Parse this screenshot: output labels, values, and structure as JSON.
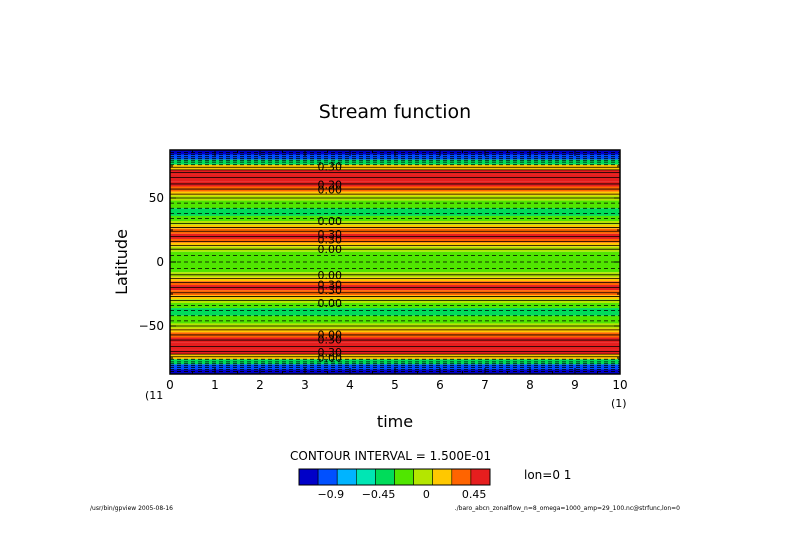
{
  "chart_data": {
    "type": "heatmap",
    "title": "Stream function",
    "xlabel": "time",
    "ylabel": "Latitude",
    "xlim": [
      0,
      10
    ],
    "ylim": [
      -87.5,
      87.5
    ],
    "x_ticks": [
      0,
      1,
      2,
      3,
      4,
      5,
      6,
      7,
      8,
      9,
      10
    ],
    "y_ticks": [
      50,
      0,
      -50
    ],
    "x_tick_labels": [
      "0",
      "1",
      "2",
      "3",
      "4",
      "5",
      "6",
      "7",
      "8",
      "9",
      "10"
    ],
    "y_tick_labels": [
      "50",
      "0",
      "−50"
    ],
    "x_left_unit": "(11",
    "x_right_unit": "(1)",
    "contour_interval_text": "CONTOUR INTERVAL = 1.500E-01",
    "lon_text": "lon=0 1",
    "colorbar": {
      "colors": [
        "#0000c8",
        "#0050ff",
        "#00b4ff",
        "#00e6b4",
        "#00dc5a",
        "#50e600",
        "#b4e600",
        "#ffc800",
        "#ff6400",
        "#e61e1e"
      ],
      "tick_values": [
        -0.9,
        -0.45,
        0,
        0.45
      ],
      "tick_labels": [
        "−0.9",
        "−0.45",
        "0",
        "0.45"
      ],
      "range": [
        -1.2,
        0.6
      ]
    },
    "bands": [
      {
        "lat": [
          84,
          87.5
        ],
        "value": -1.35
      },
      {
        "lat": [
          80,
          84
        ],
        "value": -0.95
      },
      {
        "lat": [
          76,
          80
        ],
        "value": -0.4
      },
      {
        "lat": [
          72,
          76
        ],
        "value": 0.2
      },
      {
        "lat": [
          68,
          72
        ],
        "value": 0.5
      },
      {
        "lat": [
          63,
          68
        ],
        "value": 0.55
      },
      {
        "lat": [
          59,
          63
        ],
        "value": 0.5
      },
      {
        "lat": [
          55,
          59
        ],
        "value": 0.4
      },
      {
        "lat": [
          52,
          55
        ],
        "value": 0.2
      },
      {
        "lat": [
          48,
          52
        ],
        "value": 0.02
      },
      {
        "lat": [
          42,
          48
        ],
        "value": -0.15
      },
      {
        "lat": [
          36,
          42
        ],
        "value": -0.4
      },
      {
        "lat": [
          32,
          36
        ],
        "value": -0.15
      },
      {
        "lat": [
          29,
          32
        ],
        "value": 0.02
      },
      {
        "lat": [
          26,
          29
        ],
        "value": 0.2
      },
      {
        "lat": [
          22,
          26
        ],
        "value": 0.4
      },
      {
        "lat": [
          18,
          22
        ],
        "value": 0.5
      },
      {
        "lat": [
          15,
          18
        ],
        "value": 0.4
      },
      {
        "lat": [
          12,
          15
        ],
        "value": 0.2
      },
      {
        "lat": [
          8,
          12
        ],
        "value": 0.02
      },
      {
        "lat": [
          -8,
          8
        ],
        "value": -0.3
      },
      {
        "lat": [
          -12,
          -8
        ],
        "value": 0.02
      },
      {
        "lat": [
          -15,
          -12
        ],
        "value": 0.2
      },
      {
        "lat": [
          -18,
          -15
        ],
        "value": 0.4
      },
      {
        "lat": [
          -22,
          -18
        ],
        "value": 0.5
      },
      {
        "lat": [
          -26,
          -22
        ],
        "value": 0.4
      },
      {
        "lat": [
          -29,
          -26
        ],
        "value": 0.2
      },
      {
        "lat": [
          -32,
          -29
        ],
        "value": 0.02
      },
      {
        "lat": [
          -36,
          -32
        ],
        "value": -0.15
      },
      {
        "lat": [
          -42,
          -36
        ],
        "value": -0.4
      },
      {
        "lat": [
          -48,
          -42
        ],
        "value": -0.15
      },
      {
        "lat": [
          -52,
          -48
        ],
        "value": 0.02
      },
      {
        "lat": [
          -55,
          -52
        ],
        "value": 0.2
      },
      {
        "lat": [
          -59,
          -55
        ],
        "value": 0.4
      },
      {
        "lat": [
          -63,
          -59
        ],
        "value": 0.5
      },
      {
        "lat": [
          -68,
          -63
        ],
        "value": 0.55
      },
      {
        "lat": [
          -72,
          -68
        ],
        "value": 0.5
      },
      {
        "lat": [
          -76,
          -72
        ],
        "value": 0.2
      },
      {
        "lat": [
          -80,
          -76
        ],
        "value": -0.4
      },
      {
        "lat": [
          -84,
          -80
        ],
        "value": -0.95
      },
      {
        "lat": [
          -87.5,
          -84
        ],
        "value": -1.35
      }
    ],
    "contour_lines": [
      {
        "lat": 85.5,
        "dashed": true
      },
      {
        "lat": 84,
        "dashed": true
      },
      {
        "lat": 82.5,
        "dashed": true
      },
      {
        "lat": 81,
        "dashed": true
      },
      {
        "lat": 79.5,
        "dashed": true
      },
      {
        "lat": 78,
        "dashed": true
      },
      {
        "lat": 76,
        "dashed": true
      },
      {
        "lat": 74,
        "dashed": false
      },
      {
        "lat": 72,
        "dashed": false
      },
      {
        "lat": 70,
        "dashed": false
      },
      {
        "lat": 66,
        "dashed": false
      },
      {
        "lat": 61,
        "dashed": false
      },
      {
        "lat": 57,
        "dashed": false
      },
      {
        "lat": 53,
        "dashed": false
      },
      {
        "lat": 50,
        "dashed": false
      },
      {
        "lat": 46,
        "dashed": true
      },
      {
        "lat": 42,
        "dashed": true
      },
      {
        "lat": 38,
        "dashed": true
      },
      {
        "lat": 34,
        "dashed": true
      },
      {
        "lat": 30,
        "dashed": false
      },
      {
        "lat": 27,
        "dashed": false
      },
      {
        "lat": 24,
        "dashed": false
      },
      {
        "lat": 20,
        "dashed": false
      },
      {
        "lat": 16,
        "dashed": false
      },
      {
        "lat": 13,
        "dashed": false
      },
      {
        "lat": 10,
        "dashed": false
      },
      {
        "lat": 5,
        "dashed": true
      },
      {
        "lat": 0,
        "dashed": true
      },
      {
        "lat": -5,
        "dashed": true
      },
      {
        "lat": -10,
        "dashed": false
      },
      {
        "lat": -13,
        "dashed": false
      },
      {
        "lat": -16,
        "dashed": false
      },
      {
        "lat": -20,
        "dashed": false
      },
      {
        "lat": -24,
        "dashed": false
      },
      {
        "lat": -27,
        "dashed": false
      },
      {
        "lat": -30,
        "dashed": false
      },
      {
        "lat": -34,
        "dashed": true
      },
      {
        "lat": -38,
        "dashed": true
      },
      {
        "lat": -42,
        "dashed": true
      },
      {
        "lat": -46,
        "dashed": true
      },
      {
        "lat": -50,
        "dashed": false
      },
      {
        "lat": -53,
        "dashed": false
      },
      {
        "lat": -57,
        "dashed": false
      },
      {
        "lat": -61,
        "dashed": false
      },
      {
        "lat": -66,
        "dashed": false
      },
      {
        "lat": -70,
        "dashed": false
      },
      {
        "lat": -72,
        "dashed": false
      },
      {
        "lat": -74,
        "dashed": false
      },
      {
        "lat": -76,
        "dashed": true
      },
      {
        "lat": -78,
        "dashed": true
      },
      {
        "lat": -79.5,
        "dashed": true
      },
      {
        "lat": -81,
        "dashed": true
      },
      {
        "lat": -82.5,
        "dashed": true
      },
      {
        "lat": -84,
        "dashed": true
      },
      {
        "lat": -85.5,
        "dashed": true
      }
    ],
    "contour_labels": [
      {
        "text": "0.30",
        "lat": 74.5
      },
      {
        "text": "0.30",
        "lat": 60.5
      },
      {
        "text": "0.00",
        "lat": 56.5
      },
      {
        "text": "0.00",
        "lat": 32
      },
      {
        "text": "0.30",
        "lat": 22
      },
      {
        "text": "0.30",
        "lat": 17.5
      },
      {
        "text": "0.00",
        "lat": 10
      },
      {
        "text": "0.00",
        "lat": -10
      },
      {
        "text": "0.30",
        "lat": -17.5
      },
      {
        "text": "0.30",
        "lat": -22
      },
      {
        "text": "0.00",
        "lat": -32
      },
      {
        "text": "0.00",
        "lat": -56.5
      },
      {
        "text": "0.30",
        "lat": -60.5
      },
      {
        "text": "0.30",
        "lat": -70.5
      },
      {
        "text": "0.00",
        "lat": -74.5
      }
    ],
    "label_time": 3.55
  },
  "footer": {
    "left": "/usr/bin/gpview  2005-08-16",
    "right": "./baro_abcn_zonalflow_n=8_omega=1000_amp=29_100.nc@strfunc,lon=0"
  }
}
